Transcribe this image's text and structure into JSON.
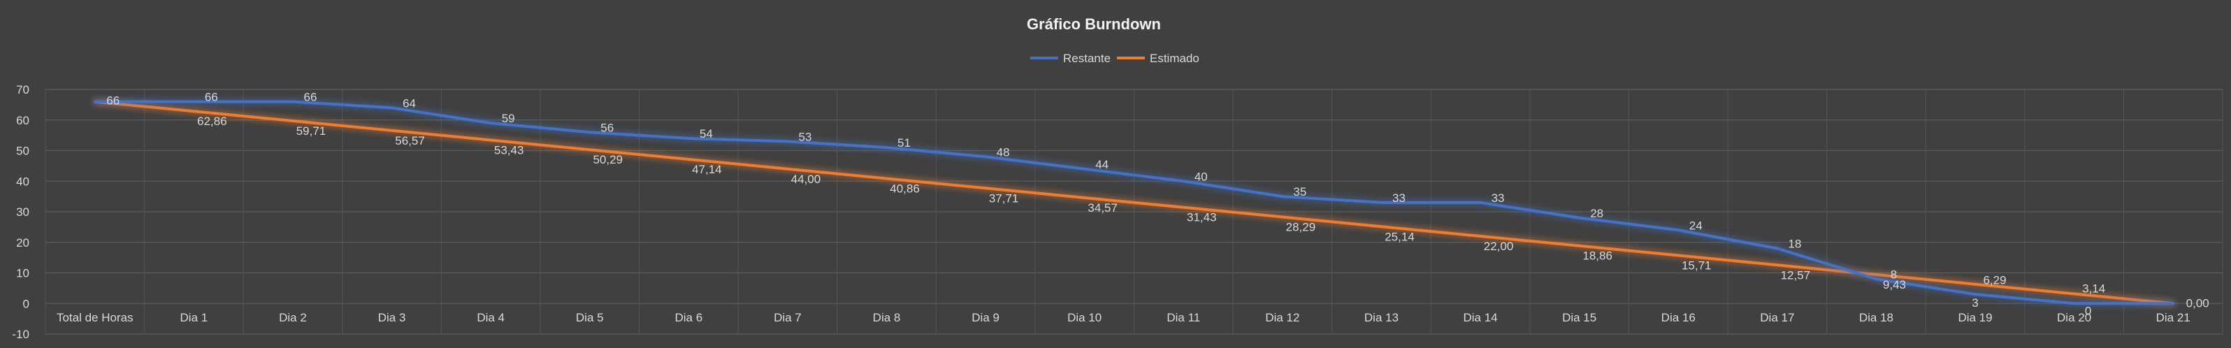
{
  "chart_data": {
    "type": "line",
    "title": "Gráfico Burndown",
    "xlabel": "",
    "ylabel": "",
    "categories": [
      "Total de Horas",
      "Dia 1",
      "Dia 2",
      "Dia 3",
      "Dia 4",
      "Dia 5",
      "Dia 6",
      "Dia 7",
      "Dia 8",
      "Dia 9",
      "Dia 10",
      "Dia 11",
      "Dia 12",
      "Dia 13",
      "Dia 14",
      "Dia 15",
      "Dia 16",
      "Dia 17",
      "Dia 18",
      "Dia 19",
      "Dia 20",
      "Dia 21"
    ],
    "ylim": [
      -10,
      70
    ],
    "yticks": [
      "-10",
      "0",
      "10",
      "20",
      "30",
      "40",
      "50",
      "60",
      "70"
    ],
    "grid": true,
    "legend_position": "top",
    "series": [
      {
        "name": "Restante",
        "color": "#4472C4",
        "values": [
          66,
          66,
          66,
          64,
          59,
          56,
          54,
          53,
          51,
          48,
          44,
          40,
          35,
          33,
          33,
          28,
          24,
          18,
          8,
          3,
          0,
          0
        ],
        "labels": [
          "66",
          "66",
          "66",
          "64",
          "59",
          "56",
          "54",
          "53",
          "51",
          "48",
          "44",
          "40",
          "35",
          "33",
          "33",
          "28",
          "24",
          "18",
          "8",
          "3",
          "0",
          ""
        ]
      },
      {
        "name": "Estimado",
        "color": "#ED7D31",
        "values": [
          66,
          62.86,
          59.71,
          56.57,
          53.43,
          50.29,
          47.14,
          44.0,
          40.86,
          37.71,
          34.57,
          31.43,
          28.29,
          25.14,
          22.0,
          18.86,
          15.71,
          12.57,
          9.43,
          6.29,
          3.14,
          0.0
        ],
        "labels": [
          "",
          "62,86",
          "59,71",
          "56,57",
          "53,43",
          "50,29",
          "47,14",
          "44,00",
          "40,86",
          "37,71",
          "34,57",
          "31,43",
          "28,29",
          "25,14",
          "22,00",
          "18,86",
          "15,71",
          "12,57",
          "9,43",
          "6,29",
          "3,14",
          "0,00"
        ]
      }
    ]
  }
}
